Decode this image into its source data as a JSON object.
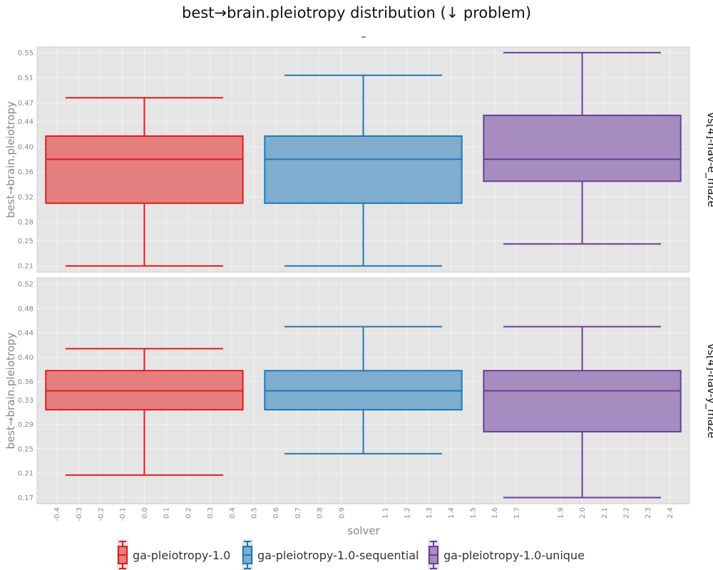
{
  "chart_data": {
    "type": "box",
    "title": "best→brain.pleiotropy distribution (↓ problem)",
    "subtitle": "–",
    "xlabel": "solver",
    "ylabel": "best→brain.pleiotropy",
    "x_ticks": [
      "-0.4",
      "-0.3",
      "-0.2",
      "-0.1",
      "0.0",
      "0.1",
      "0.2",
      "0.3",
      "0.4",
      "0.5",
      "0.6",
      "0.7",
      "0.8",
      "0.9",
      "1.1",
      "1.2",
      "1.3",
      "1.4",
      "1.5",
      "1.6",
      "1.7",
      "1.9",
      "2.0",
      "2.1",
      "2.2",
      "2.3",
      "2.4"
    ],
    "series_names": [
      "ga-pleiotropy-1.0",
      "ga-pleiotropy-1.0-sequential",
      "ga-pleiotropy-1.0-unique"
    ],
    "colors": {
      "fill": [
        "#e57f7f",
        "#7eadcf",
        "#a68cbf"
      ],
      "stroke": [
        "#e41a1c",
        "#1f78b4",
        "#6a3d9a"
      ]
    },
    "legend_placement": "bottom",
    "grid": true,
    "facets": [
      {
        "label": "vs[4]-nav-e_maze",
        "ylim": [
          0.2,
          0.559
        ],
        "y_ticks": [
          0.21,
          0.25,
          0.28,
          0.32,
          0.36,
          0.4,
          0.44,
          0.47,
          0.51,
          0.55
        ],
        "y_tick_labels": [
          "0.21",
          "0.25",
          "0.28",
          "0.32",
          "0.36",
          "0.40",
          "0.44",
          "0.47",
          "0.51",
          "0.55"
        ],
        "boxes": [
          {
            "series": "ga-pleiotropy-1.0",
            "min": 0.21,
            "q1": 0.31,
            "median": 0.38,
            "q3": 0.417,
            "max": 0.478
          },
          {
            "series": "ga-pleiotropy-1.0-sequential",
            "min": 0.21,
            "q1": 0.31,
            "median": 0.38,
            "q3": 0.417,
            "max": 0.514
          },
          {
            "series": "ga-pleiotropy-1.0-unique",
            "min": 0.245,
            "q1": 0.345,
            "median": 0.38,
            "q3": 0.45,
            "max": 0.55
          }
        ]
      },
      {
        "label": "vs[4]-nav-y_maze",
        "ylim": [
          0.16,
          0.53
        ],
        "y_ticks": [
          0.17,
          0.21,
          0.25,
          0.29,
          0.33,
          0.36,
          0.4,
          0.44,
          0.48,
          0.52
        ],
        "y_tick_labels": [
          "0.17",
          "0.21",
          "0.25",
          "0.29",
          "0.33",
          "0.36",
          "0.40",
          "0.44",
          "0.48",
          "0.52"
        ],
        "boxes": [
          {
            "series": "ga-pleiotropy-1.0",
            "min": 0.207,
            "q1": 0.314,
            "median": 0.345,
            "q3": 0.378,
            "max": 0.414
          },
          {
            "series": "ga-pleiotropy-1.0-sequential",
            "min": 0.242,
            "q1": 0.314,
            "median": 0.345,
            "q3": 0.378,
            "max": 0.45
          },
          {
            "series": "ga-pleiotropy-1.0-unique",
            "min": 0.17,
            "q1": 0.278,
            "median": 0.345,
            "q3": 0.378,
            "max": 0.45
          }
        ]
      }
    ]
  }
}
